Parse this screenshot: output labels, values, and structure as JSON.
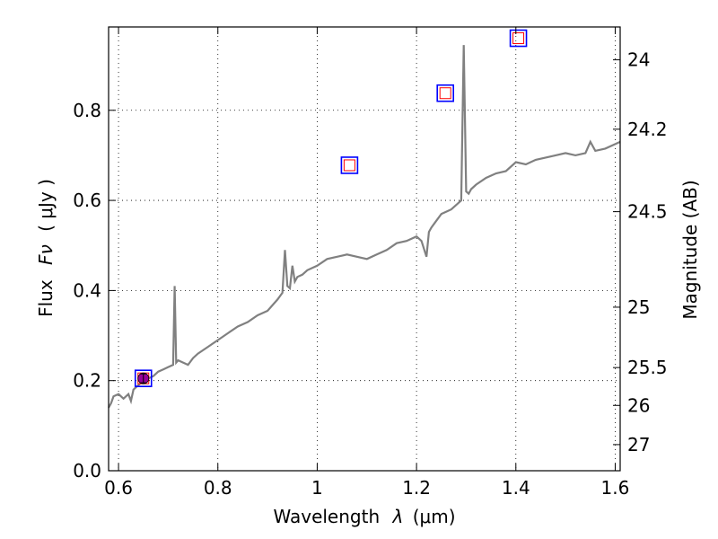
{
  "chart_data": {
    "type": "line",
    "title": "",
    "xlabel_text": "Wavelength",
    "xlabel_var": "λ",
    "xlabel_unit": "(μm)",
    "ylabel_text": "Flux",
    "ylabel_var": "Fν",
    "ylabel_unit": "( μJy )",
    "y2label": "Magnitude (AB)",
    "xlim": [
      0.58,
      1.61
    ],
    "ylim": [
      0.0,
      0.985
    ],
    "x_ticks": [
      0.6,
      0.8,
      1.0,
      1.2,
      1.4,
      1.6
    ],
    "x_tick_labels": [
      "0.6",
      "0.8",
      "1",
      "1.2",
      "1.4",
      "1.6"
    ],
    "y_ticks": [
      0.0,
      0.2,
      0.4,
      0.6,
      0.8
    ],
    "y_tick_labels": [
      "0.0",
      "0.2",
      "0.4",
      "0.6",
      "0.8"
    ],
    "y2_ticks": [
      {
        "label": "24",
        "flux": 0.912
      },
      {
        "label": "24.2",
        "flux": 0.758
      },
      {
        "label": "24.5",
        "flux": 0.575
      },
      {
        "label": "25",
        "flux": 0.363
      },
      {
        "label": "25.5",
        "flux": 0.229
      },
      {
        "label": "26",
        "flux": 0.145
      },
      {
        "label": "27",
        "flux": 0.058
      }
    ],
    "grid": true,
    "colors": {
      "spectrum": "#808080",
      "box_outer": "#0000ff",
      "box_inner": "#ff0000",
      "point_fill": "#990099"
    },
    "series": [
      {
        "style": "line",
        "x": [
          0.58,
          0.585,
          0.59,
          0.6,
          0.61,
          0.62,
          0.625,
          0.63,
          0.64,
          0.65,
          0.66,
          0.67,
          0.68,
          0.69,
          0.7,
          0.71,
          0.713,
          0.716,
          0.72,
          0.73,
          0.74,
          0.75,
          0.76,
          0.78,
          0.8,
          0.82,
          0.84,
          0.86,
          0.88,
          0.9,
          0.92,
          0.93,
          0.935,
          0.94,
          0.945,
          0.95,
          0.955,
          0.96,
          0.97,
          0.98,
          1.0,
          1.02,
          1.04,
          1.06,
          1.08,
          1.1,
          1.12,
          1.14,
          1.16,
          1.18,
          1.2,
          1.21,
          1.22,
          1.225,
          1.23,
          1.24,
          1.25,
          1.26,
          1.27,
          1.28,
          1.29,
          1.295,
          1.3,
          1.305,
          1.31,
          1.32,
          1.34,
          1.36,
          1.38,
          1.4,
          1.42,
          1.44,
          1.46,
          1.48,
          1.5,
          1.52,
          1.54,
          1.55,
          1.56,
          1.58,
          1.6,
          1.61
        ],
        "y": [
          0.14,
          0.15,
          0.165,
          0.17,
          0.16,
          0.17,
          0.155,
          0.18,
          0.19,
          0.2,
          0.205,
          0.21,
          0.22,
          0.225,
          0.23,
          0.235,
          0.41,
          0.24,
          0.245,
          0.24,
          0.235,
          0.25,
          0.26,
          0.275,
          0.29,
          0.305,
          0.32,
          0.33,
          0.345,
          0.355,
          0.38,
          0.395,
          0.49,
          0.41,
          0.405,
          0.455,
          0.42,
          0.43,
          0.435,
          0.445,
          0.455,
          0.47,
          0.475,
          0.48,
          0.475,
          0.47,
          0.48,
          0.49,
          0.505,
          0.51,
          0.52,
          0.51,
          0.475,
          0.53,
          0.54,
          0.555,
          0.57,
          0.575,
          0.58,
          0.59,
          0.6,
          0.945,
          0.62,
          0.615,
          0.625,
          0.635,
          0.65,
          0.66,
          0.665,
          0.685,
          0.68,
          0.69,
          0.695,
          0.7,
          0.705,
          0.7,
          0.705,
          0.73,
          0.71,
          0.715,
          0.725,
          0.73
        ]
      },
      {
        "style": "boxes",
        "x": [
          0.65,
          1.065,
          1.258,
          1.405
        ],
        "y": [
          0.205,
          0.678,
          0.838,
          0.96
        ]
      },
      {
        "style": "point",
        "x": [
          0.65
        ],
        "y": [
          0.205
        ]
      }
    ]
  }
}
